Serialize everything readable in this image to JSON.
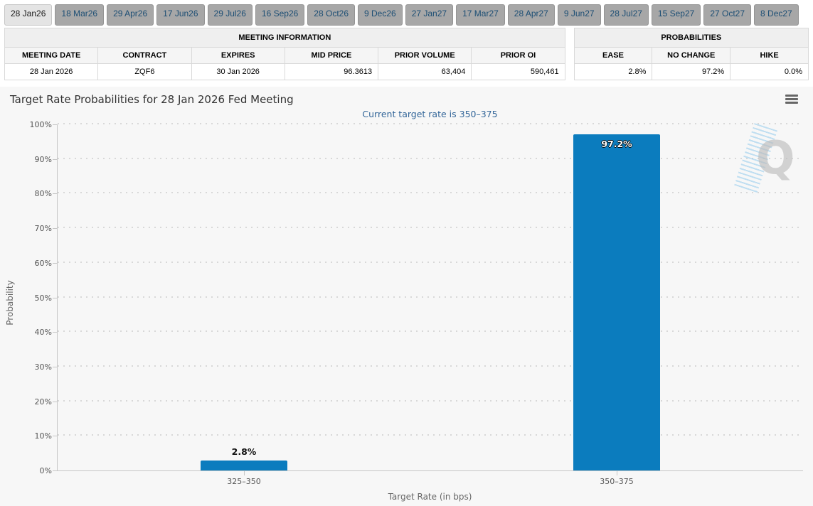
{
  "tabs": [
    {
      "label": "28 Jan26",
      "active": true
    },
    {
      "label": "18 Mar26",
      "active": false
    },
    {
      "label": "29 Apr26",
      "active": false
    },
    {
      "label": "17 Jun26",
      "active": false
    },
    {
      "label": "29 Jul26",
      "active": false
    },
    {
      "label": "16 Sep26",
      "active": false
    },
    {
      "label": "28 Oct26",
      "active": false
    },
    {
      "label": "9 Dec26",
      "active": false
    },
    {
      "label": "27 Jan27",
      "active": false
    },
    {
      "label": "17 Mar27",
      "active": false
    },
    {
      "label": "28 Apr27",
      "active": false
    },
    {
      "label": "9 Jun27",
      "active": false
    },
    {
      "label": "28 Jul27",
      "active": false
    },
    {
      "label": "15 Sep27",
      "active": false
    },
    {
      "label": "27 Oct27",
      "active": false
    },
    {
      "label": "8 Dec27",
      "active": false
    }
  ],
  "meeting_info": {
    "title": "MEETING INFORMATION",
    "columns": [
      "MEETING DATE",
      "CONTRACT",
      "EXPIRES",
      "MID PRICE",
      "PRIOR VOLUME",
      "PRIOR OI"
    ],
    "row": [
      "28 Jan 2026",
      "ZQF6",
      "30 Jan 2026",
      "96.3613",
      "63,404",
      "590,461"
    ]
  },
  "probabilities": {
    "title": "PROBABILITIES",
    "columns": [
      "EASE",
      "NO CHANGE",
      "HIKE"
    ],
    "row": [
      "2.8%",
      "97.2%",
      "0.0%"
    ]
  },
  "chart_data": {
    "type": "bar",
    "title": "Target Rate Probabilities for 28 Jan 2026 Fed Meeting",
    "subtitle": "Current target rate is 350–375",
    "xlabel": "Target Rate (in bps)",
    "ylabel": "Probability",
    "categories": [
      "325–350",
      "350–375"
    ],
    "values": [
      2.8,
      97.2
    ],
    "value_labels": [
      "2.8%",
      "97.2%"
    ],
    "ylim": [
      0,
      100
    ],
    "ytick_step": 10,
    "ytick_suffix": "%",
    "grid": "dotted",
    "legend": "none",
    "bar_color": "#0b7cbe",
    "watermark_letter": "Q"
  }
}
